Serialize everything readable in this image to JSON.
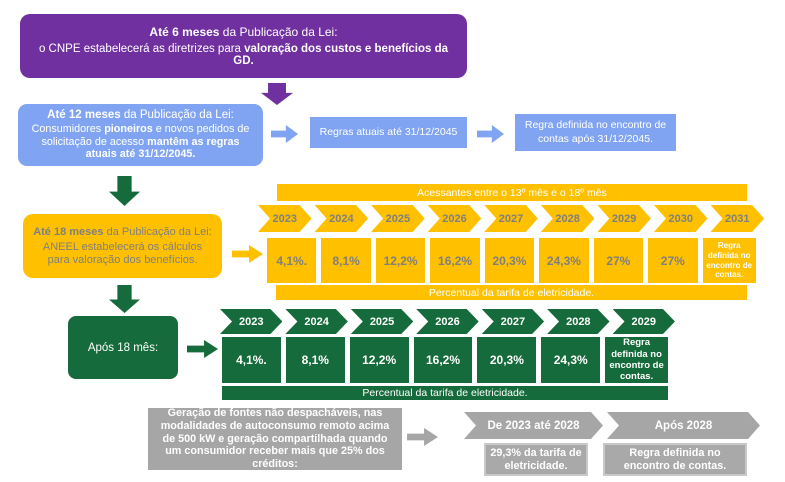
{
  "colors": {
    "purple": "#7030A0",
    "blue": "#80A4F2",
    "yellow": "#FFC000",
    "green": "#156B3B",
    "gray": "#A6A6A6",
    "muted_text": "#7F7F7F"
  },
  "purple_box": {
    "title_bold": "Até 6 meses",
    "title_rest": " da Publicação da Lei:",
    "body_pre": "o CNPE estabelecerá as diretrizes para ",
    "body_bold": "valoração dos custos e benefícios da GD."
  },
  "blue_flow": {
    "box1": {
      "title_bold": "Até 12 meses",
      "title_rest": " da Publicação da Lei:",
      "body_pre": "Consumidores ",
      "body_bold1": "pioneiros",
      "body_mid": " e novos pedidos de solicitação de acesso ",
      "body_bold2": "mantêm as regras atuais até 31/12/2045."
    },
    "box2": "Regras atuais até 31/12/2045",
    "box3": "Regra definida no encontro de contas após 31/12/2045."
  },
  "yellow_section": {
    "header": "Acessantes entre o 13º mês e o 18º mês",
    "years": [
      "2023",
      "2024",
      "2025",
      "2026",
      "2027",
      "2028",
      "2029",
      "2030",
      "2031"
    ],
    "values": [
      "4,1%.",
      "8,1%",
      "12,2%",
      "16,2%",
      "20,3%",
      "24,3%",
      "27%",
      "27%",
      "Regra definida no encontro de contas."
    ],
    "footer": "Percentual da tarifa de eletricidade.",
    "box": {
      "title_bold": "Até 18 meses",
      "title_rest": " da Publicação da Lei:",
      "body": "ANEEL estabelecerá os cálculos para valoração dos benefícios."
    }
  },
  "green_section": {
    "box": "Após 18 mês:",
    "years": [
      "2023",
      "2024",
      "2025",
      "2026",
      "2027",
      "2028",
      "2029"
    ],
    "values": [
      "4,1%.",
      "8,1%",
      "12,2%",
      "16,2%",
      "20,3%",
      "24,3%",
      "Regra definida no encontro de contas."
    ],
    "footer": "Percentual da tarifa de eletricidade."
  },
  "gray_section": {
    "box": "Geração de fontes não despacháveis, nas modalidades de autoconsumo remoto acima de 500 kW e geração compartilhada quando um consumidor receber mais que 25% dos créditos:",
    "chevrons": [
      "De 2023 até 2028",
      "Após 2028"
    ],
    "values": [
      "29,3% da tarifa de eletricidade.",
      "Regra definida no encontro de contas."
    ]
  }
}
